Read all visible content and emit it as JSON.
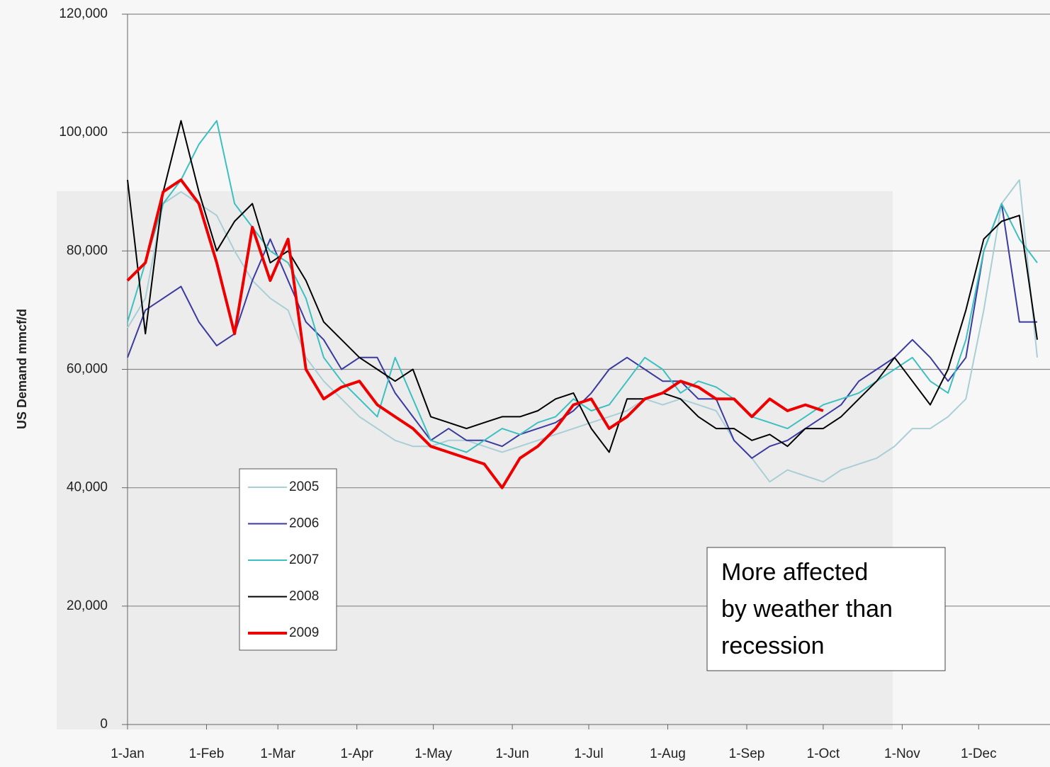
{
  "chart_data": {
    "type": "line",
    "y_label": "US Demand mmcf/d",
    "annotation": [
      "More affected",
      "by weather than",
      "recession"
    ],
    "x": [
      0,
      7,
      14,
      21,
      28,
      35,
      42,
      49,
      56,
      63,
      70,
      77,
      84,
      91,
      98,
      105,
      112,
      119,
      126,
      133,
      140,
      147,
      154,
      161,
      168,
      175,
      182,
      189,
      196,
      203,
      210,
      217,
      224,
      231,
      238,
      245,
      252,
      259,
      266,
      273,
      280,
      287,
      294,
      301,
      308,
      315,
      322,
      329,
      336,
      343,
      350,
      357
    ],
    "xlim": [
      0,
      362
    ],
    "xticks": [
      {
        "value": 0,
        "label": "1-Jan"
      },
      {
        "value": 31,
        "label": "1-Feb"
      },
      {
        "value": 59,
        "label": "1-Mar"
      },
      {
        "value": 90,
        "label": "1-Apr"
      },
      {
        "value": 120,
        "label": "1-May"
      },
      {
        "value": 151,
        "label": "1-Jun"
      },
      {
        "value": 181,
        "label": "1-Jul"
      },
      {
        "value": 212,
        "label": "1-Aug"
      },
      {
        "value": 243,
        "label": "1-Sep"
      },
      {
        "value": 273,
        "label": "1-Oct"
      },
      {
        "value": 304,
        "label": "1-Nov"
      },
      {
        "value": 334,
        "label": "1-Dec"
      }
    ],
    "ylim": [
      0,
      120000
    ],
    "yticks": [
      0,
      {
        "value": 20000,
        "label": "20,000"
      },
      {
        "value": 40000,
        "label": "40,000"
      },
      {
        "value": 60000,
        "label": "60,000"
      },
      {
        "value": 80000,
        "label": "80,000"
      },
      {
        "value": 100000,
        "label": "100,000"
      },
      {
        "value": 120000,
        "label": "120,000"
      }
    ],
    "grid": true,
    "series": [
      {
        "name": "2005",
        "color": "#a8cfd6",
        "width": 2,
        "values": [
          67000,
          72000,
          88000,
          90000,
          88000,
          86000,
          80000,
          75000,
          72000,
          70000,
          62000,
          58000,
          55000,
          52000,
          50000,
          48000,
          47000,
          47000,
          48000,
          48000,
          47000,
          46000,
          47000,
          48000,
          49000,
          50000,
          51000,
          52000,
          53000,
          55000,
          54000,
          55000,
          54000,
          53000,
          48000,
          45000,
          41000,
          43000,
          42000,
          41000,
          43000,
          44000,
          45000,
          47000,
          50000,
          50000,
          52000,
          55000,
          70000,
          88000,
          92000,
          62000
        ]
      },
      {
        "name": "2006",
        "color": "#3a3aa0",
        "width": 2,
        "values": [
          62000,
          70000,
          72000,
          74000,
          68000,
          64000,
          66000,
          75000,
          82000,
          75000,
          68000,
          65000,
          60000,
          62000,
          62000,
          56000,
          52000,
          48000,
          50000,
          48000,
          48000,
          47000,
          49000,
          50000,
          51000,
          53000,
          56000,
          60000,
          62000,
          60000,
          58000,
          58000,
          55000,
          55000,
          48000,
          45000,
          47000,
          48000,
          50000,
          52000,
          54000,
          58000,
          60000,
          62000,
          65000,
          62000,
          58000,
          62000,
          80000,
          88000,
          68000,
          68000
        ]
      },
      {
        "name": "2007",
        "color": "#3cc0c0",
        "width": 2,
        "values": [
          68000,
          78000,
          88000,
          92000,
          98000,
          102000,
          88000,
          84000,
          80000,
          78000,
          72000,
          62000,
          58000,
          55000,
          52000,
          62000,
          55000,
          48000,
          47000,
          46000,
          48000,
          50000,
          49000,
          51000,
          52000,
          55000,
          53000,
          54000,
          58000,
          62000,
          60000,
          56000,
          58000,
          57000,
          55000,
          52000,
          51000,
          50000,
          52000,
          54000,
          55000,
          56000,
          58000,
          60000,
          62000,
          58000,
          56000,
          65000,
          80000,
          88000,
          82000,
          78000
        ]
      },
      {
        "name": "2008",
        "color": "#000000",
        "width": 2,
        "values": [
          92000,
          66000,
          90000,
          102000,
          90000,
          80000,
          85000,
          88000,
          78000,
          80000,
          75000,
          68000,
          65000,
          62000,
          60000,
          58000,
          60000,
          52000,
          51000,
          50000,
          51000,
          52000,
          52000,
          53000,
          55000,
          56000,
          50000,
          46000,
          55000,
          55000,
          56000,
          55000,
          52000,
          50000,
          50000,
          48000,
          49000,
          47000,
          50000,
          50000,
          52000,
          55000,
          58000,
          62000,
          58000,
          54000,
          60000,
          70000,
          82000,
          85000,
          86000,
          65000
        ]
      },
      {
        "name": "2009",
        "color": "#ee0000",
        "width": 4,
        "values": [
          75000,
          78000,
          90000,
          92000,
          88000,
          78000,
          66000,
          84000,
          75000,
          82000,
          60000,
          55000,
          57000,
          58000,
          54000,
          52000,
          50000,
          47000,
          46000,
          45000,
          44000,
          40000,
          45000,
          47000,
          50000,
          54000,
          55000,
          50000,
          52000,
          55000,
          56000,
          58000,
          57000,
          55000,
          55000,
          52000,
          55000,
          53000,
          54000,
          53000,
          null,
          null,
          null,
          null,
          null,
          null,
          null,
          null,
          null,
          null,
          null,
          null
        ]
      }
    ]
  }
}
